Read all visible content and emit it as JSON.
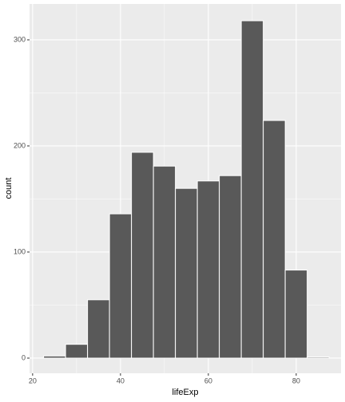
{
  "chart_data": {
    "type": "histogram",
    "x_label": "lifeExp",
    "y_label": "count",
    "bins": [
      22.5,
      27.5,
      32.5,
      37.5,
      42.5,
      47.5,
      52.5,
      57.5,
      62.5,
      67.5,
      72.5,
      77.5,
      82.5,
      87.5
    ],
    "counts": [
      2,
      13,
      55,
      136,
      194,
      181,
      160,
      167,
      172,
      318,
      224,
      83,
      1
    ],
    "color": "#595959",
    "xlim": [
      19.3,
      90.2
    ],
    "xticks": [
      20,
      40,
      60,
      80
    ],
    "ylim": [
      -14.3,
      333.8
    ],
    "yticks": [
      0,
      100,
      200,
      300
    ],
    "grid": true
  }
}
